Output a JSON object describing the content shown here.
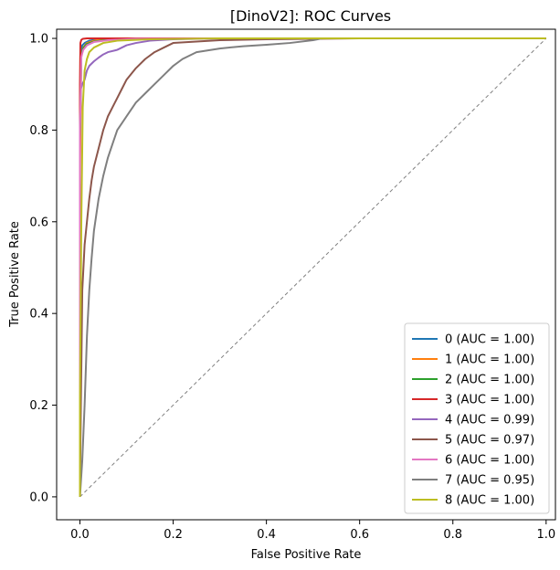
{
  "chart_data": {
    "type": "line",
    "title": "[DinoV2]: ROC Curves",
    "xlabel": "False Positive Rate",
    "ylabel": "True Positive Rate",
    "xlim": [
      -0.05,
      1.02
    ],
    "ylim": [
      -0.05,
      1.02
    ],
    "xticks": [
      "0.0",
      "0.2",
      "0.4",
      "0.6",
      "0.8",
      "1.0"
    ],
    "yticks": [
      "0.0",
      "0.2",
      "0.4",
      "0.6",
      "0.8",
      "1.0"
    ],
    "grid": false,
    "legend_position": "lower-right",
    "diagonal": {
      "x": [
        0,
        1
      ],
      "y": [
        0,
        1
      ],
      "style": "dashed",
      "color": "#808080"
    },
    "series": [
      {
        "name": "0 (AUC = 1.00)",
        "color": "#1f77b4",
        "x": [
          0,
          0,
          0.002,
          0.005,
          0.01,
          0.02,
          0.04,
          0.08,
          0.2,
          1.0
        ],
        "y": [
          0,
          0.75,
          0.97,
          0.985,
          0.99,
          0.995,
          0.998,
          1.0,
          1.0,
          1.0
        ]
      },
      {
        "name": "1 (AUC = 1.00)",
        "color": "#ff7f0e",
        "x": [
          0,
          0,
          0.003,
          0.007,
          0.015,
          0.03,
          0.05,
          0.1,
          0.3,
          1.0
        ],
        "y": [
          0,
          0.7,
          0.96,
          0.98,
          0.99,
          0.995,
          0.998,
          1.0,
          1.0,
          1.0
        ]
      },
      {
        "name": "2 (AUC = 1.00)",
        "color": "#2ca02c",
        "x": [
          0,
          0,
          0.003,
          0.008,
          0.015,
          0.03,
          0.06,
          0.12,
          0.3,
          1.0
        ],
        "y": [
          0,
          0.78,
          0.965,
          0.98,
          0.988,
          0.993,
          0.997,
          1.0,
          1.0,
          1.0
        ]
      },
      {
        "name": "3 (AUC = 1.00)",
        "color": "#d62728",
        "x": [
          0,
          0,
          0.001,
          0.003,
          0.006,
          0.015,
          0.04,
          1.0
        ],
        "y": [
          0,
          0.9,
          0.99,
          0.997,
          0.999,
          1.0,
          1.0,
          1.0
        ]
      },
      {
        "name": "4 (AUC = 0.99)",
        "color": "#9467bd",
        "x": [
          0,
          0,
          0.002,
          0.005,
          0.01,
          0.015,
          0.02,
          0.03,
          0.04,
          0.05,
          0.06,
          0.08,
          0.1,
          0.12,
          0.15,
          0.2,
          0.3,
          1.0
        ],
        "y": [
          0,
          0.8,
          0.89,
          0.9,
          0.91,
          0.93,
          0.94,
          0.95,
          0.958,
          0.965,
          0.97,
          0.975,
          0.985,
          0.99,
          0.995,
          0.998,
          1.0,
          1.0
        ]
      },
      {
        "name": "5 (AUC = 0.97)",
        "color": "#8c564b",
        "x": [
          0,
          0.002,
          0.005,
          0.01,
          0.015,
          0.02,
          0.025,
          0.03,
          0.04,
          0.05,
          0.06,
          0.07,
          0.08,
          0.09,
          0.1,
          0.12,
          0.14,
          0.16,
          0.18,
          0.2,
          0.25,
          0.3,
          0.4,
          0.5,
          0.6,
          1.0
        ],
        "y": [
          0,
          0.2,
          0.45,
          0.55,
          0.6,
          0.65,
          0.69,
          0.72,
          0.76,
          0.8,
          0.83,
          0.85,
          0.87,
          0.89,
          0.91,
          0.935,
          0.955,
          0.97,
          0.98,
          0.99,
          0.993,
          0.996,
          0.998,
          0.999,
          1.0,
          1.0
        ]
      },
      {
        "name": "6 (AUC = 1.00)",
        "color": "#e377c2",
        "x": [
          0,
          0,
          0.003,
          0.007,
          0.015,
          0.03,
          0.06,
          0.12,
          0.3,
          1.0
        ],
        "y": [
          0,
          0.8,
          0.96,
          0.975,
          0.985,
          0.992,
          0.996,
          0.999,
          1.0,
          1.0
        ]
      },
      {
        "name": "7 (AUC = 0.95)",
        "color": "#7f7f7f",
        "x": [
          0,
          0.005,
          0.01,
          0.015,
          0.02,
          0.025,
          0.03,
          0.04,
          0.05,
          0.06,
          0.07,
          0.08,
          0.1,
          0.12,
          0.14,
          0.16,
          0.18,
          0.2,
          0.22,
          0.25,
          0.3,
          0.35,
          0.4,
          0.45,
          0.5,
          0.52,
          0.6,
          1.0
        ],
        "y": [
          0,
          0.08,
          0.2,
          0.35,
          0.45,
          0.52,
          0.58,
          0.65,
          0.7,
          0.74,
          0.77,
          0.8,
          0.83,
          0.86,
          0.88,
          0.9,
          0.92,
          0.94,
          0.955,
          0.97,
          0.978,
          0.983,
          0.986,
          0.99,
          0.996,
          1.0,
          1.0,
          1.0
        ]
      },
      {
        "name": "8 (AUC = 1.00)",
        "color": "#bcbd22",
        "x": [
          0,
          0,
          0.003,
          0.006,
          0.01,
          0.015,
          0.02,
          0.03,
          0.05,
          0.08,
          0.15,
          0.3,
          1.0
        ],
        "y": [
          0,
          0.21,
          0.6,
          0.85,
          0.93,
          0.955,
          0.97,
          0.98,
          0.99,
          0.995,
          0.998,
          1.0,
          1.0
        ]
      }
    ]
  }
}
